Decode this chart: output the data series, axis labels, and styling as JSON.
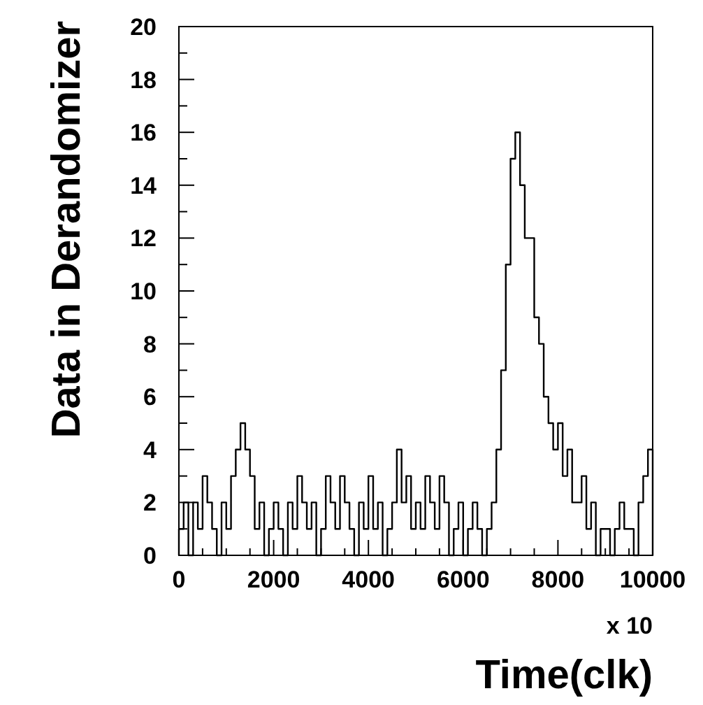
{
  "chart_data": {
    "type": "histogram",
    "xlabel": "Time(clk)",
    "ylabel": "Data in Derandomizer",
    "annotations": [
      "x 10"
    ],
    "bins": [
      0,
      100,
      200,
      300,
      400,
      500,
      600,
      700,
      800,
      900,
      1000,
      1100,
      1200,
      1300,
      1400,
      1500,
      1600,
      1700,
      1800,
      1900,
      2000,
      2100,
      2200,
      2300,
      2400,
      2500,
      2600,
      2700,
      2800,
      2900,
      3000,
      3100,
      3200,
      3300,
      3400,
      3500,
      3600,
      3700,
      3800,
      3900,
      4000,
      4100,
      4200,
      4300,
      4400,
      4500,
      4600,
      4700,
      4800,
      4900,
      5000,
      5100,
      5200,
      5300,
      5400,
      5500,
      5600,
      5700,
      5800,
      5900,
      6000,
      6100,
      6200,
      6300,
      6400,
      6500,
      6600,
      6700,
      6800,
      6900,
      7000,
      7100,
      7200,
      7300,
      7400,
      7500,
      7600,
      7700,
      7800,
      7900,
      8000,
      8100,
      8200,
      8300,
      8400,
      8500,
      8600,
      8700,
      8800,
      8900,
      9000,
      9100,
      9200,
      9300,
      9400,
      9500,
      9600,
      9700,
      9800,
      9900,
      10000
    ],
    "values": [
      1,
      2,
      0,
      2,
      1,
      3,
      2,
      1,
      0,
      2,
      1,
      3,
      4,
      5,
      4,
      3,
      1,
      2,
      0,
      1,
      2,
      1,
      0,
      2,
      1,
      3,
      2,
      1,
      2,
      0,
      1,
      3,
      2,
      1,
      3,
      2,
      1,
      0,
      2,
      1,
      3,
      1,
      2,
      0,
      1,
      2,
      4,
      2,
      3,
      1,
      2,
      1,
      3,
      2,
      1,
      3,
      2,
      0,
      1,
      2,
      0,
      1,
      2,
      1,
      0,
      1,
      2,
      4,
      7,
      11,
      15,
      16,
      14,
      12,
      12,
      9,
      8,
      6,
      5,
      4,
      5,
      3,
      4,
      2,
      2,
      3,
      1,
      2,
      0,
      1,
      1,
      0,
      1,
      2,
      1,
      1,
      0,
      2,
      3,
      4
    ],
    "color": "#000000",
    "xlim": [
      0,
      10000
    ],
    "xticks": [
      0,
      2000,
      4000,
      6000,
      8000,
      10000
    ],
    "ylim": [
      0,
      20
    ],
    "yticks": [
      0,
      2,
      4,
      6,
      8,
      10,
      12,
      14,
      16,
      18,
      20
    ],
    "grid": false
  }
}
